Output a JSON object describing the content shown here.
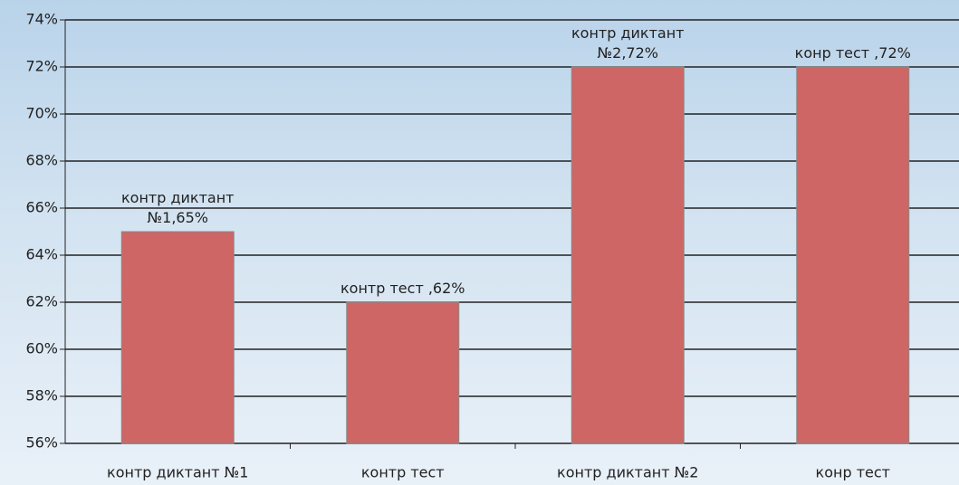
{
  "chart_data": {
    "type": "bar",
    "categories": [
      "контр диктант №1",
      "контр тест",
      "контр диктант №2",
      "конр тест"
    ],
    "values": [
      65,
      62,
      72,
      72
    ],
    "value_labels": [
      "контр диктант №1,65%",
      "контр тест ,62%",
      "контр диктант №2,72%",
      "конр тест ,72%"
    ],
    "color": "#cd6664",
    "ylim": [
      56,
      74
    ],
    "yticks": [
      {
        "value": 56,
        "label": "56%"
      },
      {
        "value": 58,
        "label": "58%"
      },
      {
        "value": 60,
        "label": "60%"
      },
      {
        "value": 62,
        "label": "62%"
      },
      {
        "value": 64,
        "label": "64%"
      },
      {
        "value": 66,
        "label": "66%"
      },
      {
        "value": 68,
        "label": "68%"
      },
      {
        "value": 70,
        "label": "70%"
      },
      {
        "value": 72,
        "label": "72%"
      },
      {
        "value": 74,
        "label": "74%"
      }
    ],
    "grid": true
  }
}
